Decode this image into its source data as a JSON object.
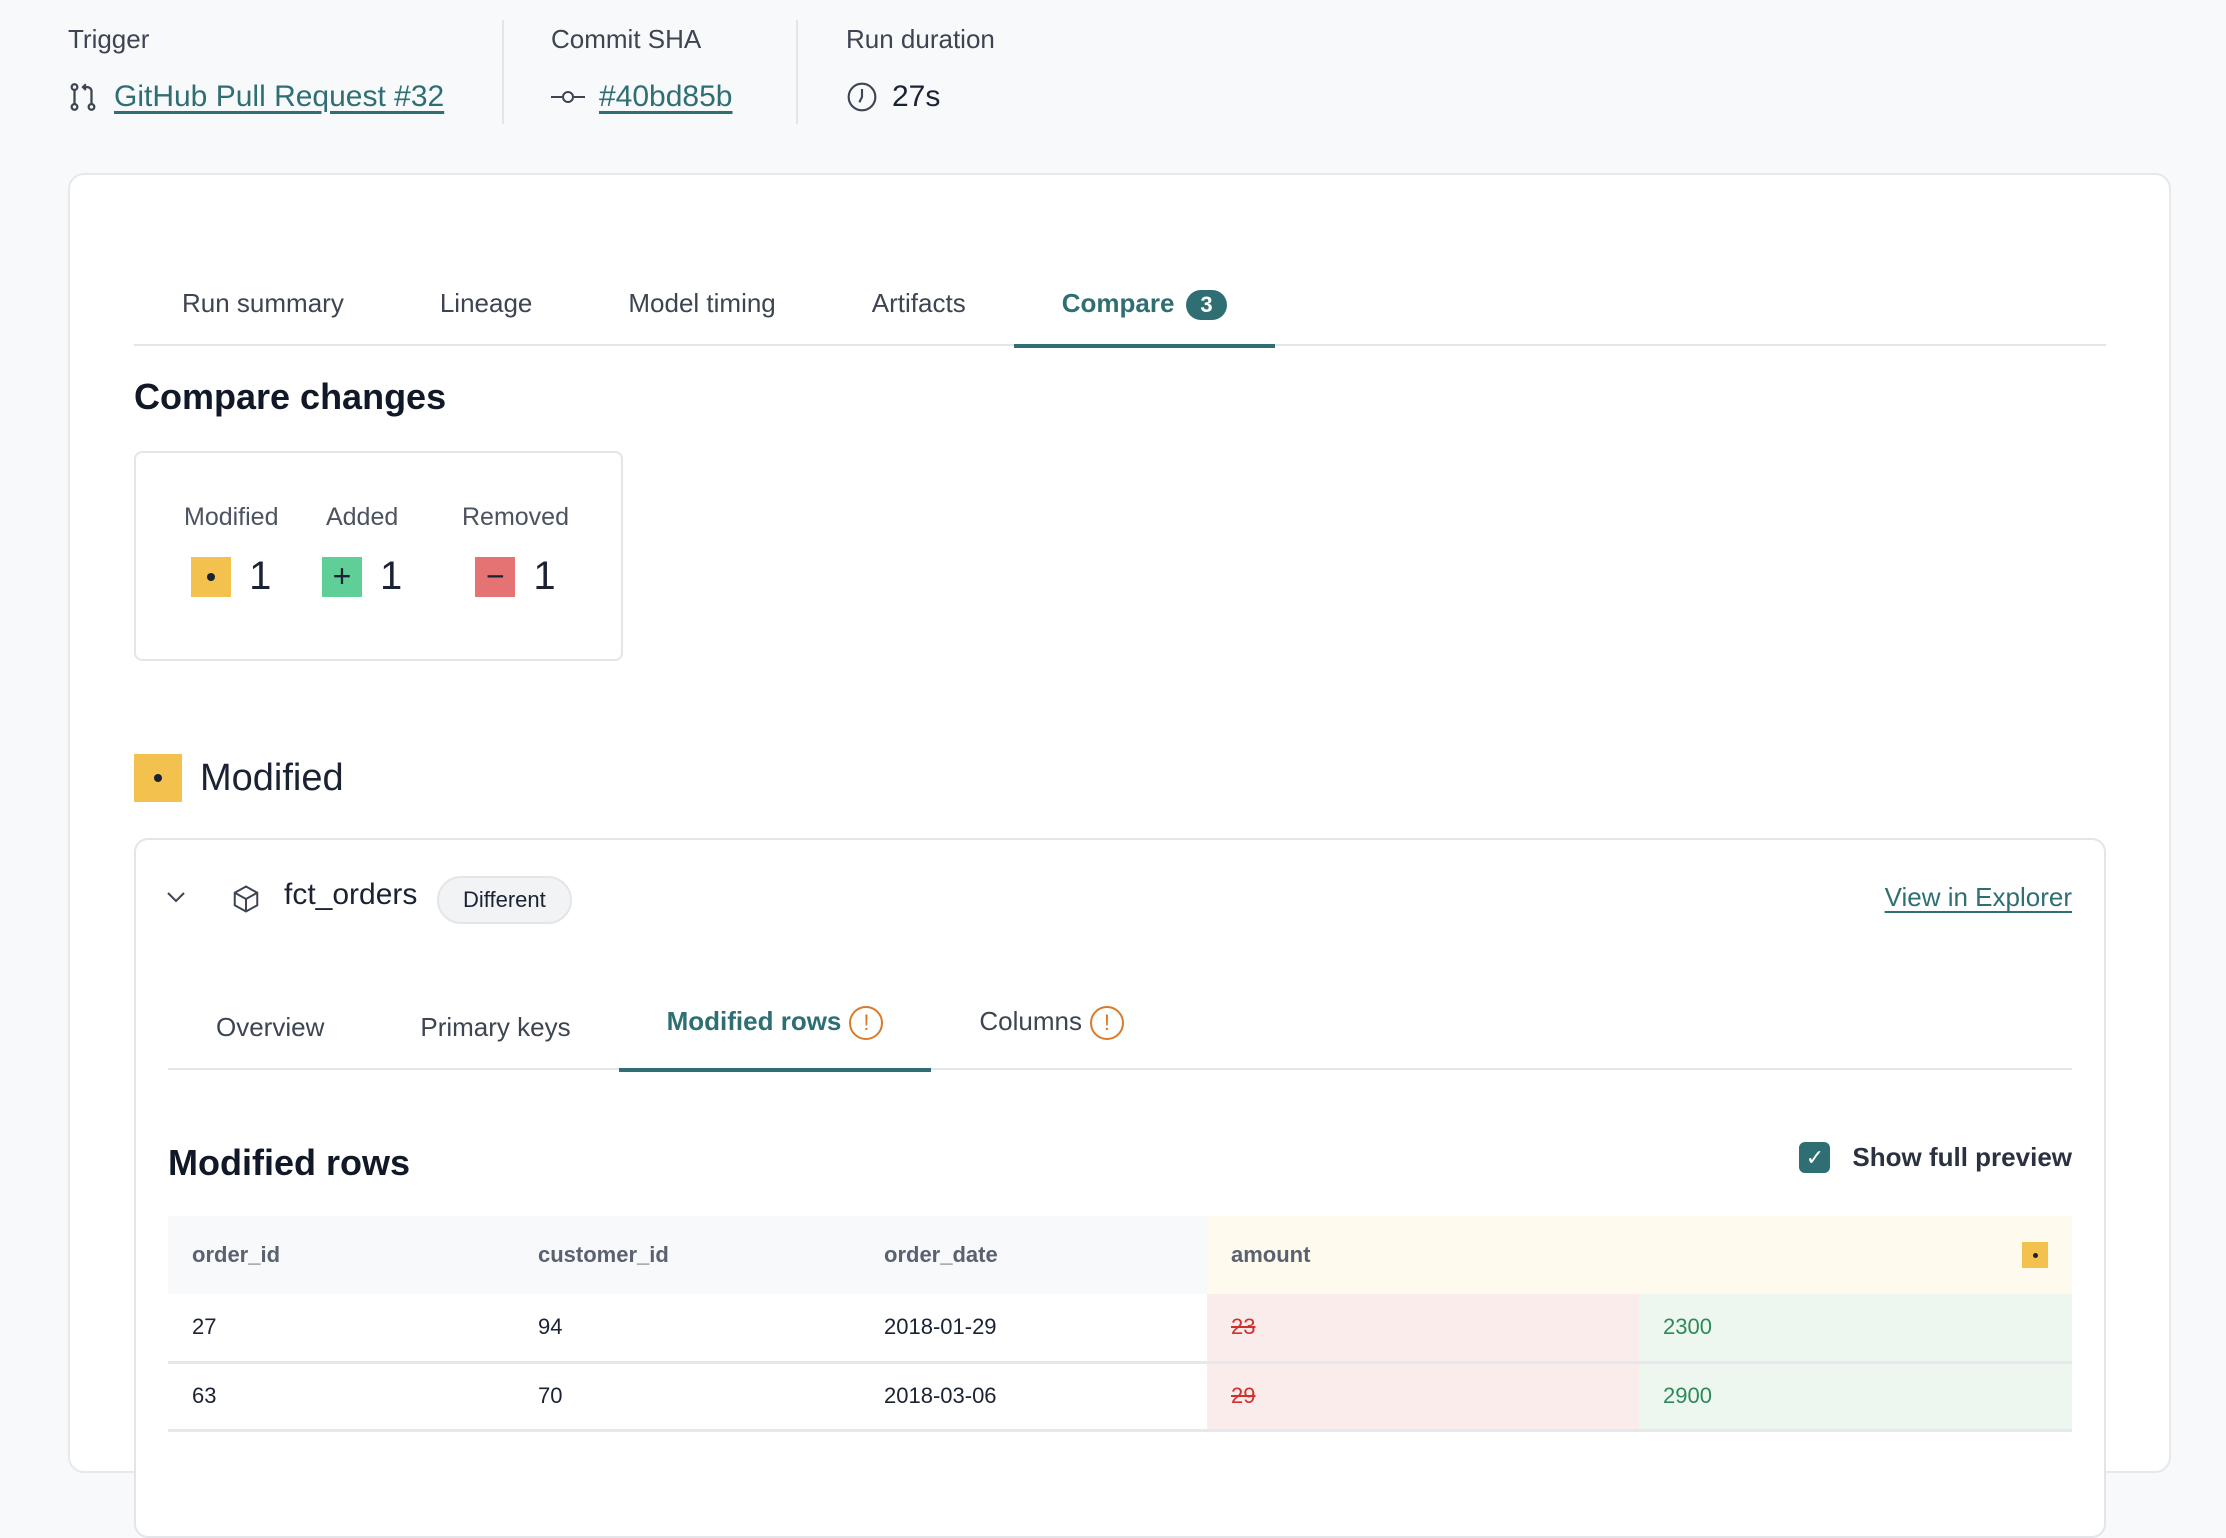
{
  "meta": {
    "trigger": {
      "label": "Trigger",
      "value": "GitHub Pull Request #32",
      "icon": "git-pull-request-icon"
    },
    "commit": {
      "label": "Commit SHA",
      "value": "#40bd85b",
      "icon": "git-commit-icon"
    },
    "duration": {
      "label": "Run duration",
      "value": "27s",
      "icon": "clock-icon"
    }
  },
  "tabs": [
    {
      "label": "Run summary"
    },
    {
      "label": "Lineage"
    },
    {
      "label": "Model timing"
    },
    {
      "label": "Artifacts"
    },
    {
      "label": "Compare",
      "count": "3",
      "active": true
    }
  ],
  "compare": {
    "title": "Compare changes",
    "summary": [
      {
        "label": "Modified",
        "value": "1"
      },
      {
        "label": "Added",
        "value": "1"
      },
      {
        "label": "Removed",
        "value": "1"
      }
    ],
    "section_title": "Modified"
  },
  "model": {
    "name": "fct_orders",
    "status": "Different",
    "link": "View in Explorer",
    "subtabs": [
      {
        "label": "Overview"
      },
      {
        "label": "Primary keys"
      },
      {
        "label": "Modified rows",
        "warn": true,
        "active": true
      },
      {
        "label": "Columns",
        "warn": true
      }
    ],
    "rows_title": "Modified rows",
    "show_full_preview": {
      "label": "Show full preview",
      "checked": true
    },
    "table": {
      "columns": [
        "order_id",
        "customer_id",
        "order_date",
        "amount"
      ],
      "rows": [
        {
          "order_id": "27",
          "customer_id": "94",
          "order_date": "2018-01-29",
          "amount_old": "23",
          "amount_new": "2300"
        },
        {
          "order_id": "63",
          "customer_id": "70",
          "order_date": "2018-03-06",
          "amount_old": "29",
          "amount_new": "2900"
        }
      ]
    }
  },
  "colors": {
    "accent": "#2f6f73",
    "modified": "#f2c14e",
    "added": "#5fcf97",
    "removed": "#e57373",
    "warning": "#d97a2b"
  }
}
